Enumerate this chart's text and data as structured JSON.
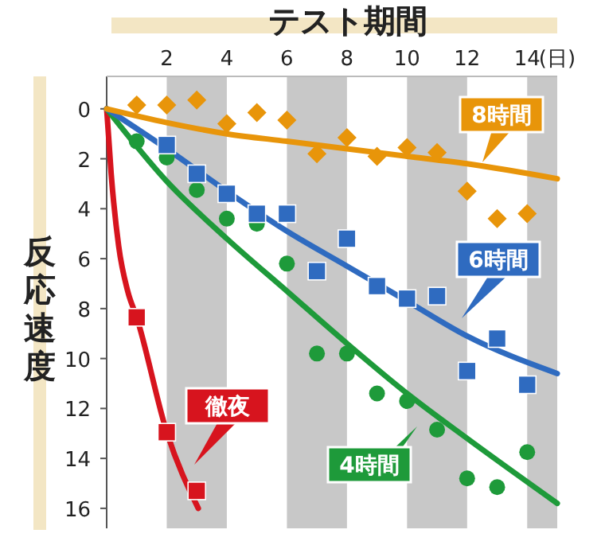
{
  "chart_data": {
    "type": "scatter",
    "xlabel": "テスト期間",
    "ylabel": "反応速度",
    "annotations": [
      "(日)"
    ],
    "xlim": [
      0,
      15
    ],
    "xticks": [
      2,
      4,
      6,
      8,
      10,
      12,
      14
    ],
    "ylim": [
      16.8,
      -1.3
    ],
    "yticks": [
      0,
      2,
      4,
      6,
      8,
      10,
      12,
      14,
      16
    ],
    "grid": false,
    "legend": false,
    "bands": [
      {
        "axis": "x",
        "from": 2,
        "to": 4,
        "color": "#c8c8c8"
      },
      {
        "axis": "x",
        "from": 6,
        "to": 8,
        "color": "#c8c8c8"
      },
      {
        "axis": "x",
        "from": 10,
        "to": 12,
        "color": "#c8c8c8"
      },
      {
        "axis": "x",
        "from": 14,
        "to": 15,
        "color": "#c8c8c8"
      }
    ],
    "series": [
      {
        "marker": "diamond",
        "color": "#e8950a",
        "x": [
          1,
          2,
          3,
          4,
          5,
          6,
          7,
          8,
          9,
          10,
          11,
          12,
          13,
          14
        ],
        "values": [
          -0.15,
          -0.15,
          -0.35,
          0.6,
          0.15,
          0.45,
          1.8,
          1.15,
          1.9,
          1.55,
          1.75,
          3.3,
          4.4,
          4.2
        ]
      },
      {
        "marker": "square",
        "color": "#2f6bc0",
        "x": [
          2,
          3,
          4,
          5,
          6,
          7,
          8,
          9,
          10,
          11,
          12,
          13,
          14
        ],
        "values": [
          1.45,
          2.6,
          3.4,
          4.2,
          4.2,
          6.5,
          5.2,
          7.1,
          7.6,
          7.5,
          10.5,
          9.2,
          11.05
        ]
      },
      {
        "marker": "circle",
        "color": "#1e9a3a",
        "x": [
          1,
          2,
          3,
          4,
          5,
          6,
          7,
          8,
          9,
          10,
          11,
          12,
          13,
          14
        ],
        "values": [
          1.3,
          1.95,
          3.25,
          4.4,
          4.6,
          6.2,
          9.8,
          9.8,
          11.4,
          11.7,
          12.85,
          14.8,
          15.15,
          13.75
        ]
      },
      {
        "marker": "square",
        "color": "#d7141e",
        "x": [
          1,
          2,
          3
        ],
        "values": [
          8.35,
          12.95,
          15.3
        ]
      },
      {
        "type": "line",
        "name": "8時間",
        "color": "#e8950a",
        "x": [
          0,
          2,
          4,
          6,
          8,
          10,
          12,
          15
        ],
        "values": [
          0,
          0.55,
          1.0,
          1.3,
          1.6,
          1.9,
          2.2,
          2.8
        ]
      },
      {
        "type": "line",
        "name": "6時間",
        "color": "#2f6bc0",
        "x": [
          0,
          2,
          4,
          6,
          8,
          10,
          12,
          15
        ],
        "values": [
          0,
          1.6,
          3.3,
          4.9,
          6.3,
          7.7,
          9.1,
          10.6
        ]
      },
      {
        "type": "line",
        "name": "4時間",
        "color": "#1e9a3a",
        "x": [
          0,
          2,
          4,
          6,
          8,
          10,
          12,
          15
        ],
        "values": [
          0,
          2.9,
          5.2,
          7.3,
          9.4,
          11.4,
          13.2,
          15.8
        ]
      },
      {
        "type": "line",
        "name": "徹夜",
        "color": "#d7141e",
        "x": [
          0,
          0.15,
          0.4,
          0.7,
          1,
          2,
          3.05
        ],
        "values": [
          0,
          2.6,
          5.5,
          7.3,
          8.35,
          12.95,
          16
        ]
      }
    ]
  }
}
